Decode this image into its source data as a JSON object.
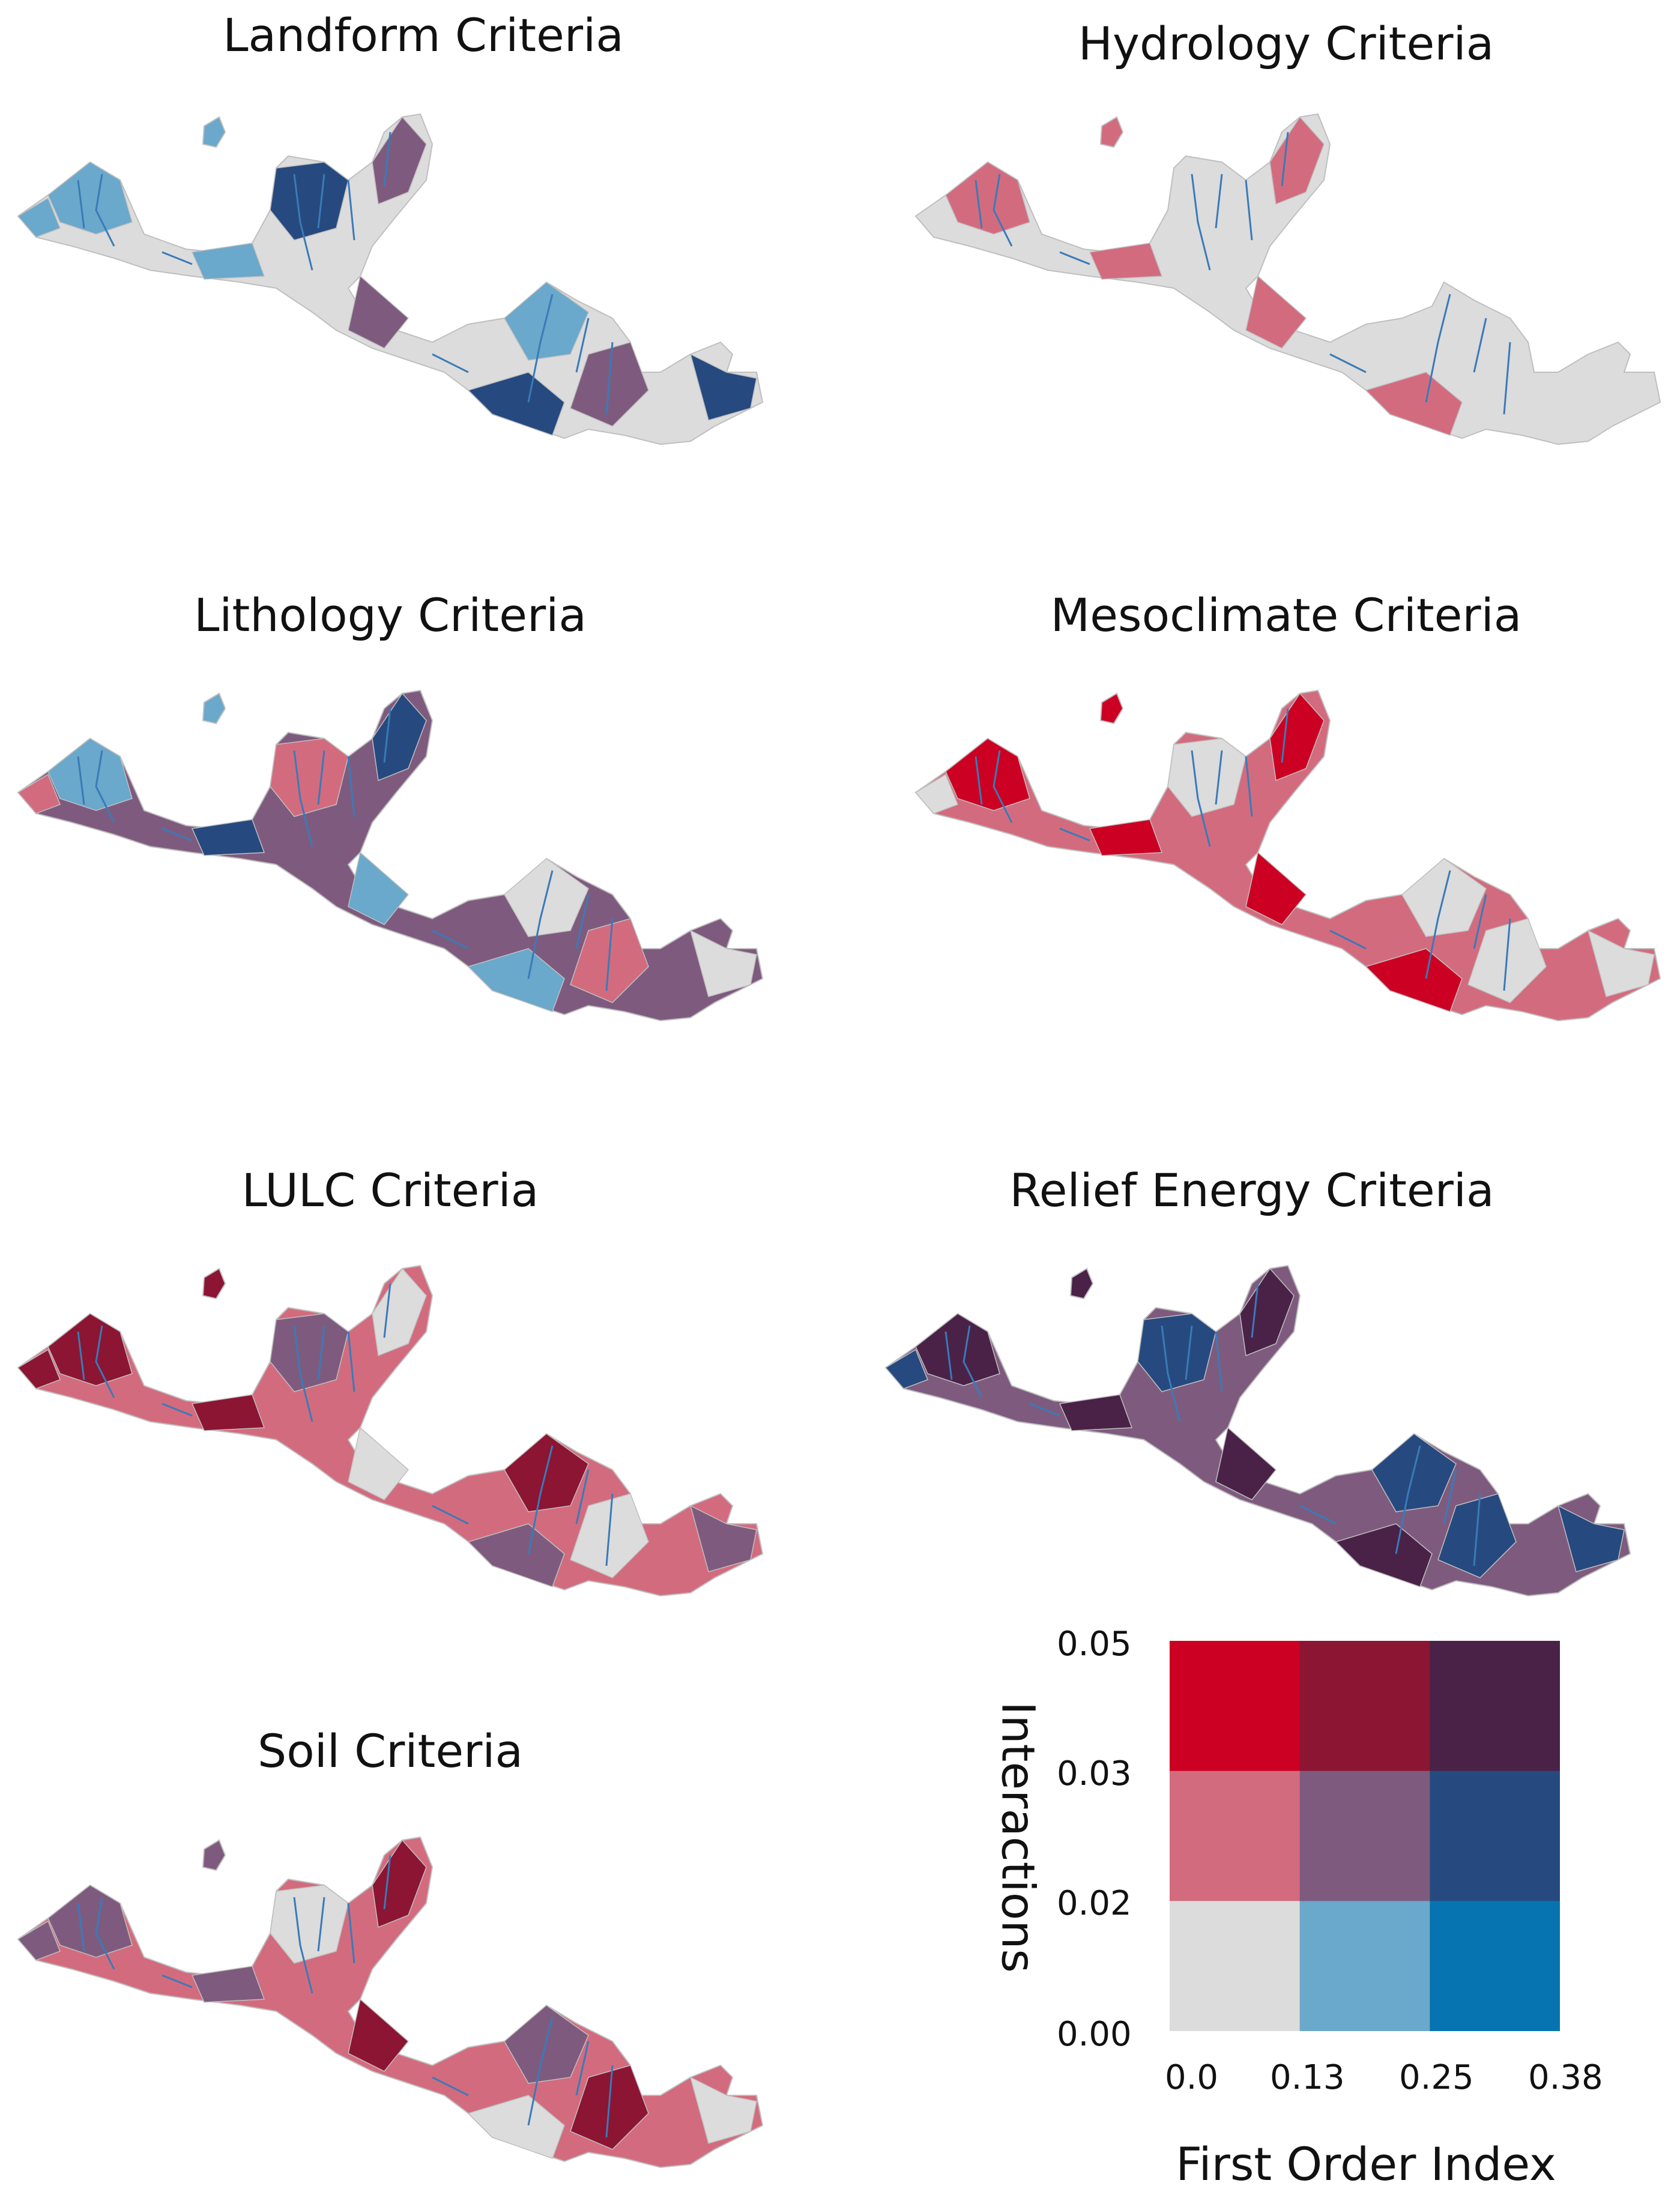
{
  "panels": [
    {
      "id": "landform",
      "title": "Landform Criteria",
      "dominant_class": "gray-low",
      "accent_classes": [
        "blue-low",
        "blue-mid",
        "purple-mid"
      ]
    },
    {
      "id": "hydrology",
      "title": "Hydrology Criteria",
      "dominant_class": "gray-low",
      "accent_classes": [
        "pink-mid"
      ]
    },
    {
      "id": "lithology",
      "title": "Lithology Criteria",
      "dominant_class": "purple-mid",
      "accent_classes": [
        "blue-low",
        "pink-mid",
        "blue-mid",
        "gray-low"
      ]
    },
    {
      "id": "mesoclimate",
      "title": "Mesoclimate Criteria",
      "dominant_class": "pink-mid",
      "accent_classes": [
        "red-high",
        "gray-low"
      ]
    },
    {
      "id": "lulc",
      "title": "LULC Criteria",
      "dominant_class": "pink-mid",
      "accent_classes": [
        "crimson-high",
        "purple-mid",
        "gray-low"
      ]
    },
    {
      "id": "relief",
      "title": "Relief Energy Criteria",
      "dominant_class": "purple-mid",
      "accent_classes": [
        "plum-high",
        "blue-mid"
      ]
    },
    {
      "id": "soil",
      "title": "Soil Criteria",
      "dominant_class": "pink-mid",
      "accent_classes": [
        "purple-mid",
        "gray-low",
        "crimson-high"
      ]
    }
  ],
  "legend": {
    "x_title": "First Order Index",
    "y_title": "Interactions",
    "x_ticks": [
      "0.0",
      "0.13",
      "0.25",
      "0.38"
    ],
    "y_ticks": [
      "0.05",
      "0.03",
      "0.02",
      "0.00"
    ],
    "grid_colors": [
      [
        "#cc0022",
        "#8c1533",
        "#4a2248"
      ],
      [
        "#d36b7e",
        "#7e5b7e",
        "#264a7f"
      ],
      [
        "#dcdcdc",
        "#6aa8cc",
        "#0674b0"
      ]
    ]
  },
  "classes": {
    "gray-low": "#dcdcdc",
    "blue-low": "#6aa8cc",
    "blue-mid": "#264a7f",
    "pink-mid": "#d36b7e",
    "purple-mid": "#7e5b7e",
    "red-high": "#cc0022",
    "crimson-high": "#8c1533",
    "plum-high": "#4a2248",
    "river": "#3a7ab8"
  }
}
